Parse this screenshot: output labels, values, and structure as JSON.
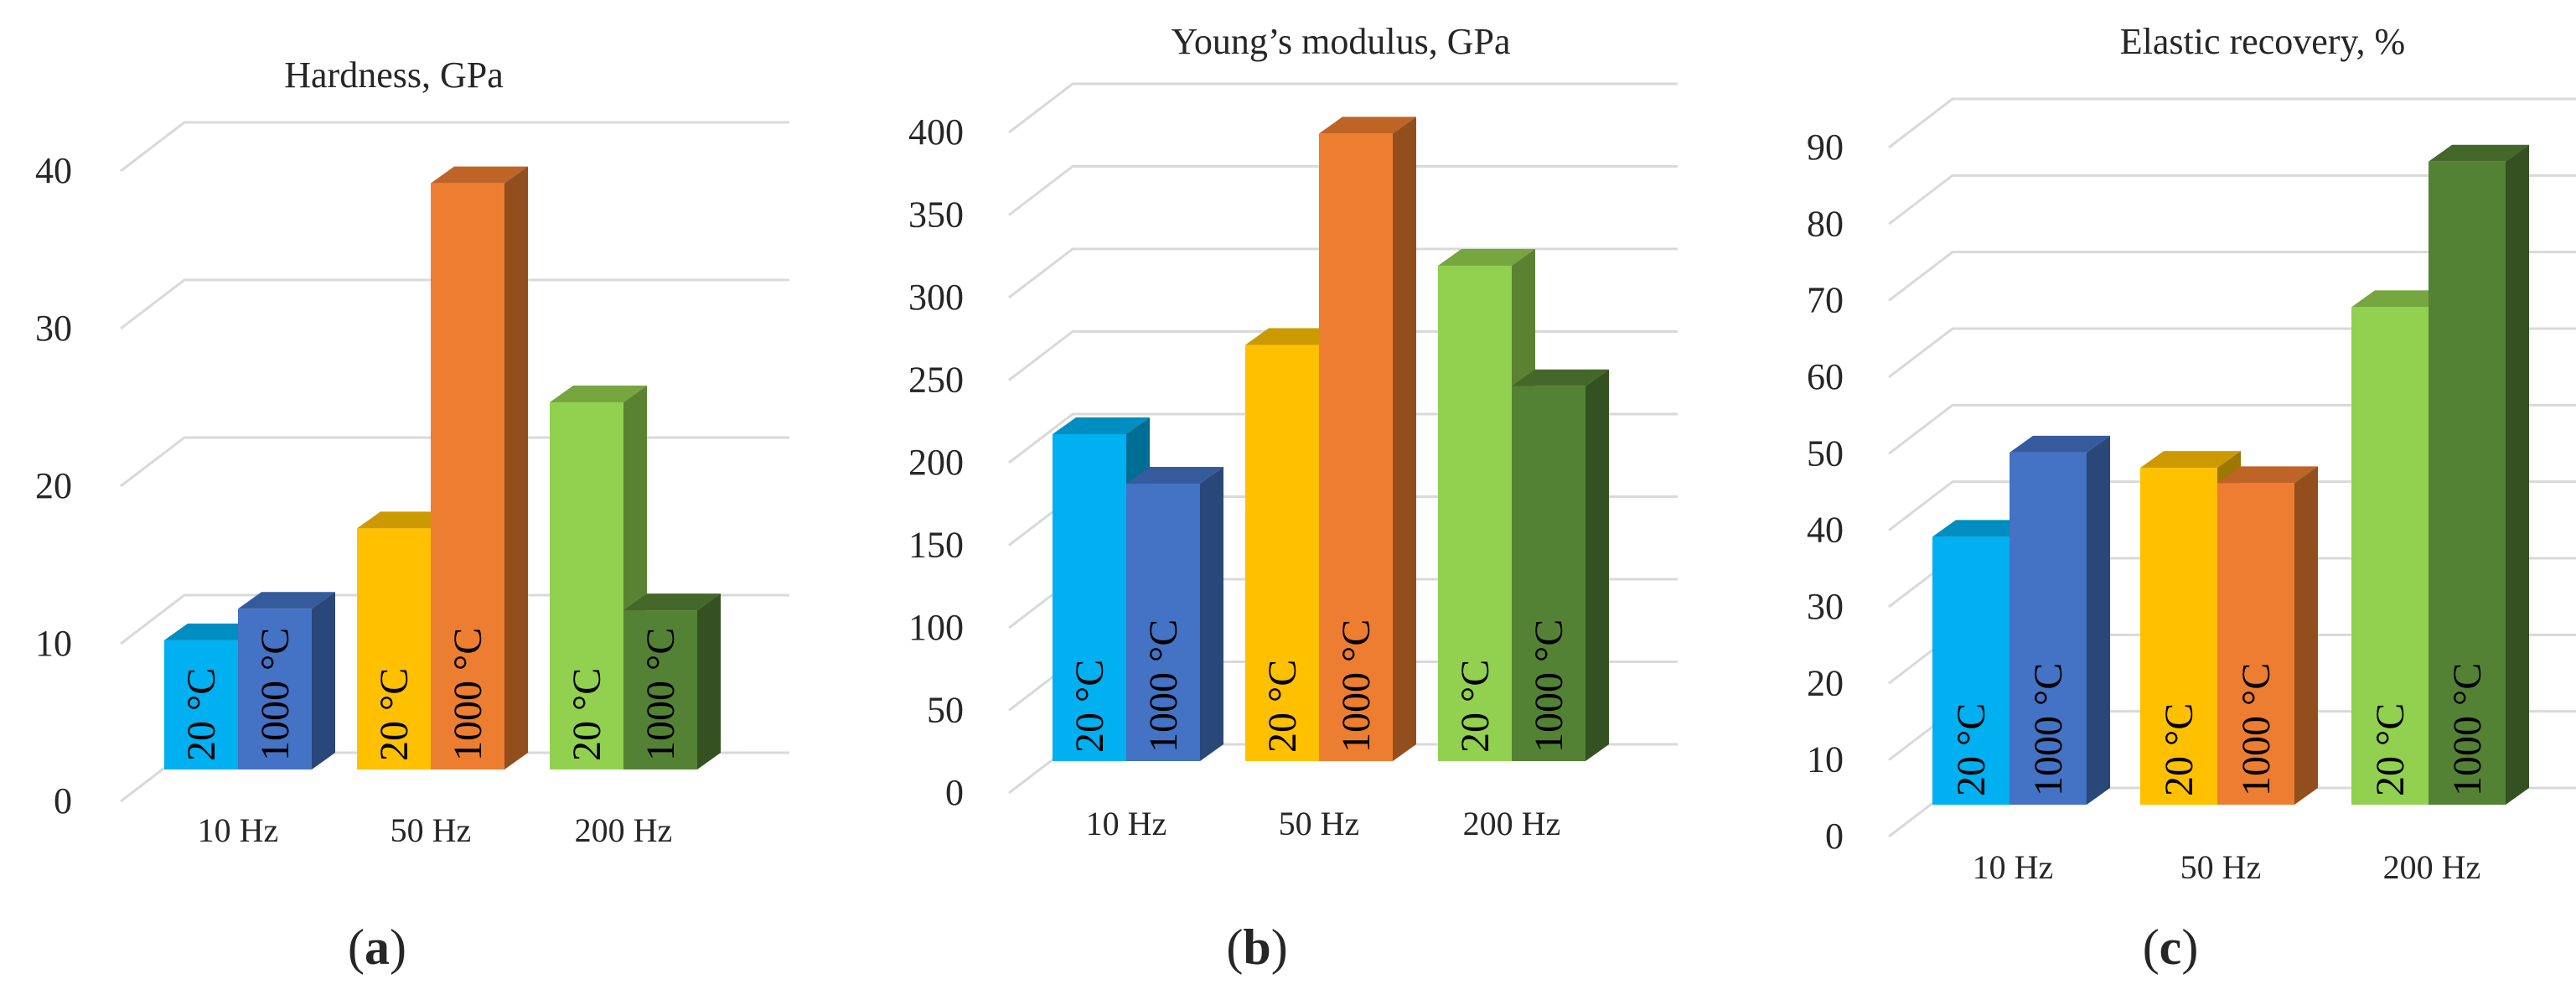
{
  "chart_data": [
    {
      "type": "bar",
      "title": "Hardness, GPa",
      "caption_letter": "a",
      "categories": [
        "10 Hz",
        "50 Hz",
        "200 Hz"
      ],
      "yticks": [
        "0",
        "10",
        "20",
        "30",
        "40"
      ],
      "ylim": [
        0,
        40
      ],
      "series": [
        {
          "name": "20 °C",
          "labels": [
            "20 °C",
            "20 °C",
            "20 °C"
          ],
          "values": [
            8.2,
            15.3,
            23.3
          ]
        },
        {
          "name": "1000 °C",
          "labels": [
            "1000 °C",
            "1000 °C",
            "1000 °C"
          ],
          "values": [
            10.2,
            37.2,
            10.1
          ]
        }
      ]
    },
    {
      "type": "bar",
      "title": "Young’s modulus, GPa",
      "caption_letter": "b",
      "categories": [
        "10 Hz",
        "50 Hz",
        "200 Hz"
      ],
      "yticks": [
        "0",
        "50",
        "100",
        "150",
        "200",
        "250",
        "300",
        "350",
        "400"
      ],
      "ylim": [
        0,
        400
      ],
      "series": [
        {
          "name": "20 °C",
          "labels": [
            "20 °C",
            "20 °C",
            "20 °C"
          ],
          "values": [
            198,
            252,
            300
          ]
        },
        {
          "name": "1000 °C",
          "labels": [
            "1000 °C",
            "1000 °C",
            "1000 °C"
          ],
          "values": [
            168,
            380,
            227
          ]
        }
      ]
    },
    {
      "type": "bar",
      "title": "Elastic recovery, %",
      "caption_letter": "c",
      "categories": [
        "10 Hz",
        "50 Hz",
        "200 Hz"
      ],
      "yticks": [
        "0",
        "10",
        "20",
        "30",
        "40",
        "50",
        "60",
        "70",
        "80",
        "90"
      ],
      "ylim": [
        0,
        90
      ],
      "series": [
        {
          "name": "20 °C",
          "labels": [
            "20 °C",
            "20 °C",
            "20 °C"
          ],
          "values": [
            35,
            44,
            65
          ]
        },
        {
          "name": "1000 °C",
          "labels": [
            "1000 °C",
            "1000 °C",
            "1000 °C"
          ],
          "values": [
            46,
            42,
            84
          ]
        }
      ]
    }
  ],
  "colors": {
    "c10_20": "#00b0f0",
    "c10_1000": "#4472c4",
    "c50_20": "#ffc000",
    "c50_1000": "#ed7d31",
    "c200_20": "#92d050",
    "c200_1000": "#548235",
    "grid": "#d9d9d9"
  }
}
